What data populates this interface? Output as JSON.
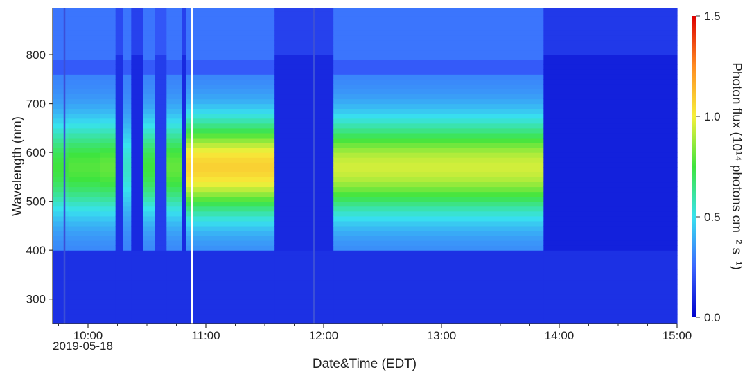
{
  "chart_data": {
    "type": "heatmap",
    "xlabel": "Date&Time (EDT)",
    "ylabel": "Wavelength (nm)",
    "colorbar_label": "Photon flux (10¹⁴ photons cm⁻² s⁻¹)",
    "date_label": "2019-05-18",
    "x_range": [
      "09:42",
      "15:00"
    ],
    "x_ticks": [
      "10:00",
      "11:00",
      "12:00",
      "13:00",
      "14:00",
      "15:00"
    ],
    "y_range": [
      250,
      895
    ],
    "y_ticks": [
      300,
      400,
      500,
      600,
      700,
      800
    ],
    "colorbar_range": [
      0.0,
      1.5
    ],
    "colorbar_ticks": [
      "0.0",
      "0.5",
      "1.0",
      "1.5"
    ],
    "colormap": [
      "#0000cc",
      "#3b66ff",
      "#38e2ee",
      "#3ee43e",
      "#f6f03a",
      "#ff8c22",
      "#dd0000"
    ],
    "segments": [
      {
        "start": "09:42",
        "end": "09:50",
        "peak": 0.75
      },
      {
        "start": "09:50",
        "end": "10:06",
        "peak": 0.78
      },
      {
        "start": "10:06",
        "end": "10:14",
        "peak": 0.8
      },
      {
        "start": "10:14",
        "end": "10:18",
        "peak": 0.12
      },
      {
        "start": "10:18",
        "end": "10:22",
        "peak": 0.55
      },
      {
        "start": "10:22",
        "end": "10:28",
        "peak": 0.1
      },
      {
        "start": "10:28",
        "end": "10:34",
        "peak": 0.75
      },
      {
        "start": "10:34",
        "end": "10:40",
        "peak": 0.15
      },
      {
        "start": "10:40",
        "end": "10:48",
        "peak": 0.8
      },
      {
        "start": "10:48",
        "end": "10:50",
        "peak": 0.1
      },
      {
        "start": "10:50",
        "end": "11:35",
        "peak": 1.08
      },
      {
        "start": "11:35",
        "end": "12:05",
        "peak": 0.1
      },
      {
        "start": "12:05",
        "end": "13:52",
        "peak": 0.95
      },
      {
        "start": "13:52",
        "end": "15:00",
        "peak": 0.08
      }
    ],
    "gap_line_time": "10:53",
    "dark_line_times": [
      "09:48",
      "11:55"
    ]
  }
}
